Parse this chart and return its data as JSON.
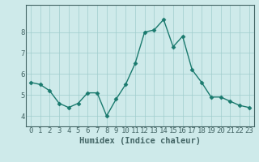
{
  "x": [
    0,
    1,
    2,
    3,
    4,
    5,
    6,
    7,
    8,
    9,
    10,
    11,
    12,
    13,
    14,
    15,
    16,
    17,
    18,
    19,
    20,
    21,
    22,
    23
  ],
  "y": [
    5.6,
    5.5,
    5.2,
    4.6,
    4.4,
    4.6,
    5.1,
    5.1,
    4.0,
    4.8,
    5.5,
    6.5,
    8.0,
    8.1,
    8.6,
    7.3,
    7.8,
    6.2,
    5.6,
    4.9,
    4.9,
    4.7,
    4.5,
    4.4
  ],
  "line_color": "#1a7a6e",
  "marker": "D",
  "marker_size": 2.5,
  "line_width": 1.0,
  "bg_color": "#ceeaea",
  "grid_color": "#a0cccc",
  "grid_color_major": "#90b8b8",
  "xlabel": "Humidex (Indice chaleur)",
  "ylim": [
    3.5,
    9.3
  ],
  "yticks": [
    4,
    5,
    6,
    7,
    8
  ],
  "xticks": [
    0,
    1,
    2,
    3,
    4,
    5,
    6,
    7,
    8,
    9,
    10,
    11,
    12,
    13,
    14,
    15,
    16,
    17,
    18,
    19,
    20,
    21,
    22,
    23
  ],
  "xlabel_fontsize": 7.5,
  "tick_fontsize": 6.5,
  "spine_color": "#446666"
}
